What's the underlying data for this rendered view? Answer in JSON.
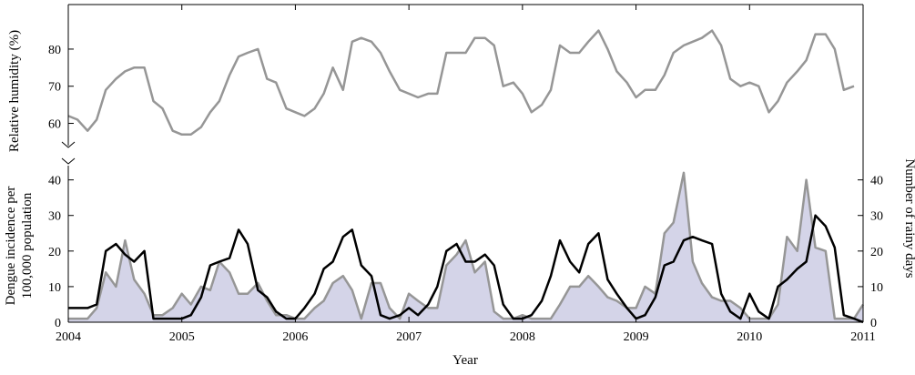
{
  "chart_data": [
    {
      "type": "line",
      "panel": "top",
      "ylabel": "Relative humidity (%)",
      "yticks": [
        60,
        70,
        80
      ],
      "ylim": [
        54,
        92
      ],
      "xlim": [
        2004,
        2011
      ],
      "grid": false,
      "series": [
        {
          "color": "#969696",
          "x": [
            2004.0,
            2004.08,
            2004.17,
            2004.25,
            2004.33,
            2004.42,
            2004.5,
            2004.58,
            2004.67,
            2004.75,
            2004.83,
            2004.92,
            2005.0,
            2005.08,
            2005.17,
            2005.25,
            2005.33,
            2005.42,
            2005.5,
            2005.58,
            2005.67,
            2005.75,
            2005.83,
            2005.92,
            2006.0,
            2006.08,
            2006.17,
            2006.25,
            2006.33,
            2006.42,
            2006.5,
            2006.58,
            2006.67,
            2006.75,
            2006.83,
            2006.92,
            2007.0,
            2007.08,
            2007.17,
            2007.25,
            2007.33,
            2007.42,
            2007.5,
            2007.58,
            2007.67,
            2007.75,
            2007.83,
            2007.92,
            2008.0,
            2008.08,
            2008.17,
            2008.25,
            2008.33,
            2008.42,
            2008.5,
            2008.58,
            2008.67,
            2008.75,
            2008.83,
            2008.92,
            2009.0,
            2009.08,
            2009.17,
            2009.25,
            2009.33,
            2009.42,
            2009.5,
            2009.58,
            2009.67,
            2009.75,
            2009.83,
            2009.92,
            2010.0,
            2010.08,
            2010.17,
            2010.25,
            2010.33,
            2010.42,
            2010.5,
            2010.58,
            2010.67,
            2010.75,
            2010.83,
            2010.92
          ],
          "y": [
            62,
            61,
            58,
            61,
            69,
            72,
            74,
            75,
            75,
            66,
            64,
            58,
            57,
            57,
            59,
            63,
            66,
            73,
            78,
            79,
            80,
            72,
            71,
            64,
            63,
            62,
            64,
            68,
            75,
            69,
            82,
            83,
            82,
            79,
            74,
            69,
            68,
            67,
            68,
            68,
            79,
            79,
            79,
            83,
            83,
            81,
            70,
            71,
            68,
            63,
            65,
            69,
            81,
            79,
            79,
            82,
            85,
            80,
            74,
            71,
            67,
            69,
            69,
            73,
            79,
            81,
            82,
            83,
            85,
            81,
            72,
            70,
            71,
            70,
            63,
            66,
            71,
            74,
            77,
            84,
            84,
            80,
            69,
            70
          ]
        }
      ]
    },
    {
      "type": "area",
      "panel": "bottom",
      "xlabel": "Year",
      "ylabel": "Dengue incidence per 100,000 population",
      "y2label": "Number of rainy days",
      "xticks": [
        "2004",
        "2005",
        "2006",
        "2007",
        "2008",
        "2009",
        "2010",
        "2011"
      ],
      "xlim": [
        2004,
        2011
      ],
      "yticks": [
        0,
        10,
        20,
        30,
        40
      ],
      "ylim": [
        0,
        44
      ],
      "y2ticks": [
        0,
        10,
        20,
        30,
        40
      ],
      "y2lim": [
        0,
        44
      ],
      "grid": false,
      "series": [
        {
          "kind": "area",
          "axis": "left",
          "fill": "#d4d4e8",
          "stroke": "#969696",
          "x": [
            2004.0,
            2004.08,
            2004.17,
            2004.25,
            2004.33,
            2004.42,
            2004.5,
            2004.58,
            2004.67,
            2004.75,
            2004.83,
            2004.92,
            2005.0,
            2005.08,
            2005.17,
            2005.25,
            2005.33,
            2005.42,
            2005.5,
            2005.58,
            2005.67,
            2005.75,
            2005.83,
            2005.92,
            2006.0,
            2006.08,
            2006.17,
            2006.25,
            2006.33,
            2006.42,
            2006.5,
            2006.58,
            2006.67,
            2006.75,
            2006.83,
            2006.92,
            2007.0,
            2007.08,
            2007.17,
            2007.25,
            2007.33,
            2007.42,
            2007.5,
            2007.58,
            2007.67,
            2007.75,
            2007.83,
            2007.92,
            2008.0,
            2008.08,
            2008.17,
            2008.25,
            2008.33,
            2008.42,
            2008.5,
            2008.58,
            2008.67,
            2008.75,
            2008.83,
            2008.92,
            2009.0,
            2009.08,
            2009.17,
            2009.25,
            2009.33,
            2009.42,
            2009.5,
            2009.58,
            2009.67,
            2009.75,
            2009.83,
            2009.92,
            2010.0,
            2010.08,
            2010.17,
            2010.25,
            2010.33,
            2010.42,
            2010.5,
            2010.58,
            2010.67,
            2010.75,
            2010.83,
            2010.92,
            2011.0
          ],
          "y": [
            1,
            1,
            1,
            4,
            14,
            10,
            23,
            12,
            8,
            2,
            2,
            4,
            8,
            5,
            10,
            9,
            17,
            14,
            8,
            8,
            11,
            6,
            2,
            2,
            1,
            1,
            4,
            6,
            11,
            13,
            9,
            1,
            11,
            11,
            4,
            1,
            8,
            6,
            4,
            4,
            16,
            19,
            23,
            14,
            17,
            3,
            1,
            1,
            2,
            1,
            1,
            1,
            5,
            10,
            10,
            13,
            10,
            7,
            6,
            4,
            4,
            10,
            8,
            25,
            28,
            42,
            17,
            11,
            7,
            6,
            6,
            4,
            1,
            1,
            1,
            5,
            24,
            20,
            40,
            21,
            20,
            1,
            1,
            1,
            5
          ]
        },
        {
          "kind": "line",
          "axis": "right",
          "stroke": "#000000",
          "x": [
            2004.0,
            2004.08,
            2004.17,
            2004.25,
            2004.33,
            2004.42,
            2004.5,
            2004.58,
            2004.67,
            2004.75,
            2004.83,
            2004.92,
            2005.0,
            2005.08,
            2005.17,
            2005.25,
            2005.33,
            2005.42,
            2005.5,
            2005.58,
            2005.67,
            2005.75,
            2005.83,
            2005.92,
            2006.0,
            2006.08,
            2006.17,
            2006.25,
            2006.33,
            2006.42,
            2006.5,
            2006.58,
            2006.67,
            2006.75,
            2006.83,
            2006.92,
            2007.0,
            2007.08,
            2007.17,
            2007.25,
            2007.33,
            2007.42,
            2007.5,
            2007.58,
            2007.67,
            2007.75,
            2007.83,
            2007.92,
            2008.0,
            2008.08,
            2008.17,
            2008.25,
            2008.33,
            2008.42,
            2008.5,
            2008.58,
            2008.67,
            2008.75,
            2008.83,
            2008.92,
            2009.0,
            2009.08,
            2009.17,
            2009.25,
            2009.33,
            2009.42,
            2009.5,
            2009.58,
            2009.67,
            2009.75,
            2009.83,
            2009.92,
            2010.0,
            2010.08,
            2010.17,
            2010.25,
            2010.33,
            2010.42,
            2010.5,
            2010.58,
            2010.67,
            2010.75,
            2010.83,
            2010.92,
            2011.0
          ],
          "y": [
            4,
            4,
            4,
            5,
            20,
            22,
            19,
            17,
            20,
            1,
            1,
            1,
            1,
            2,
            7,
            16,
            17,
            18,
            26,
            22,
            9,
            7,
            3,
            1,
            1,
            4,
            8,
            15,
            17,
            24,
            26,
            16,
            13,
            2,
            1,
            2,
            4,
            2,
            5,
            10,
            20,
            22,
            17,
            17,
            19,
            16,
            5,
            1,
            1,
            2,
            6,
            13,
            23,
            17,
            14,
            22,
            25,
            12,
            8,
            4,
            1,
            2,
            7,
            16,
            17,
            23,
            24,
            23,
            22,
            8,
            3,
            1,
            8,
            3,
            1,
            10,
            12,
            15,
            17,
            30,
            27,
            21,
            2,
            1,
            0
          ]
        }
      ]
    }
  ]
}
